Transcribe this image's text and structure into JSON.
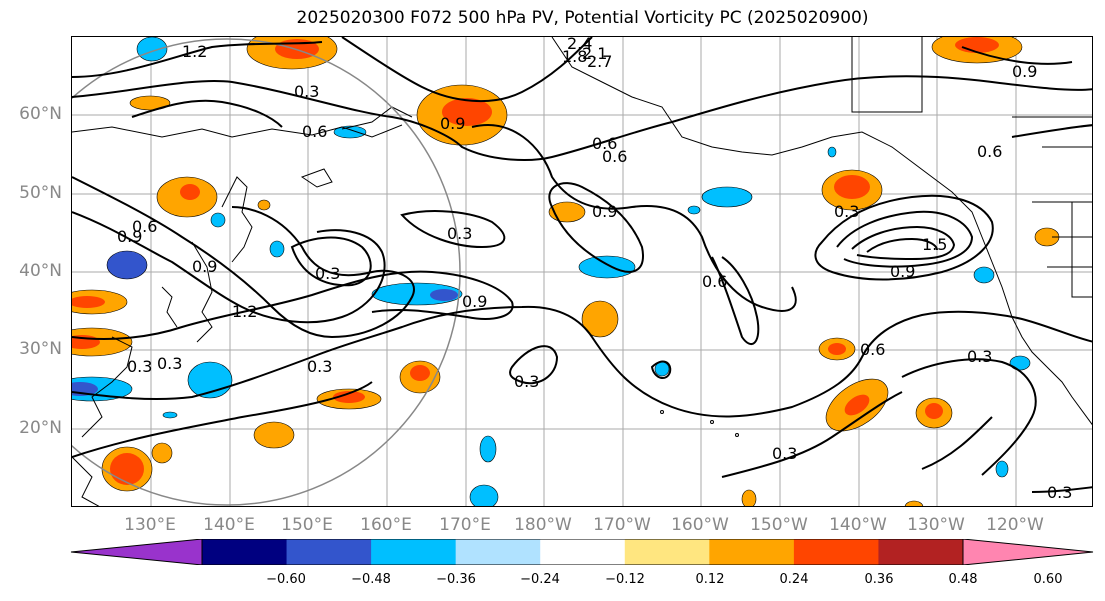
{
  "title": "2025020300 F072 500 hPa PV, Potential Vorticity PC (2025020900)",
  "lat_labels": [
    "60°N",
    "50°N",
    "40°N",
    "30°N",
    "20°N"
  ],
  "lon_labels": [
    "130°E",
    "140°E",
    "150°E",
    "160°E",
    "170°E",
    "180°W",
    "170°W",
    "160°W",
    "150°W",
    "140°W",
    "130°W",
    "120°W"
  ],
  "colorbar": {
    "ticks": [
      "−0.60",
      "−0.48",
      "−0.36",
      "−0.24",
      "−0.12",
      "0.12",
      "0.24",
      "0.36",
      "0.48",
      "0.60"
    ],
    "colors": [
      "#9933cc",
      "#000080",
      "#3355cc",
      "#00bfff",
      "#b0e2ff",
      "#ffffff",
      "#ffe680",
      "#ffa500",
      "#ff4500",
      "#b22222",
      "#ff85b0"
    ]
  },
  "contour_labels": [
    "1.2",
    "0.3",
    "2.4",
    "2.1",
    "1.8",
    "2.7",
    "0.9",
    "0.6",
    "0.9",
    "0.6",
    "0.6",
    "0.9",
    "0.9",
    "0.3",
    "0.3",
    "1.2",
    "0.3",
    "0.9",
    "0.3",
    "0.6",
    "0.6",
    "0.3",
    "1.5",
    "0.9",
    "0.6",
    "0.3",
    "0.3",
    "0.3",
    "0.3",
    "0.3",
    "0.9",
    "0.6"
  ]
}
